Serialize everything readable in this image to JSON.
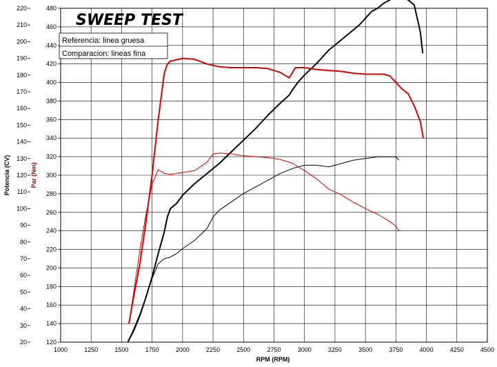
{
  "chart_data": {
    "type": "line",
    "title": "SWEEP TEST",
    "legend": [
      "Referencia: linea gruesa",
      "Comparacion: lineas fina"
    ],
    "legend_position": "top-left",
    "xlabel": "RPM (RPM)",
    "ylabel_left": "Potencia (CV)",
    "ylabel_right": "Par (Nm)",
    "xlim": [
      1000,
      4500
    ],
    "ylim_left": [
      20,
      220
    ],
    "ylim_right": [
      120,
      480
    ],
    "x_ticks": [
      "1000",
      "1250",
      "1500",
      "1750",
      "2000",
      "2250",
      "2500",
      "2750",
      "3000",
      "3250",
      "3500",
      "3750",
      "4000",
      "4250",
      "4500"
    ],
    "y_left_ticks": [
      "20",
      "30",
      "40",
      "50",
      "60",
      "70",
      "80",
      "90",
      "100",
      "110",
      "120",
      "130",
      "140",
      "150",
      "160",
      "170",
      "180",
      "190",
      "200",
      "210",
      "220"
    ],
    "y_right_ticks": [
      "120",
      "140",
      "160",
      "180",
      "200",
      "220",
      "240",
      "260",
      "280",
      "300",
      "320",
      "340",
      "360",
      "380",
      "400",
      "420",
      "440",
      "460",
      "480"
    ],
    "grid": true,
    "series": [
      {
        "name": "Potencia (CV) - Referencia",
        "axis": "left",
        "style": "thick",
        "color": "#000000",
        "x": [
          1550,
          1600,
          1650,
          1700,
          1750,
          1800,
          1850,
          1875,
          1900,
          1950,
          2000,
          2100,
          2200,
          2300,
          2400,
          2500,
          2600,
          2700,
          2800,
          2875,
          2900,
          2950,
          3000,
          3100,
          3200,
          3300,
          3400,
          3450,
          3500,
          3550,
          3600,
          3650,
          3700,
          3750,
          3800,
          3850,
          3900,
          3950,
          3970
        ],
        "y": [
          20,
          27,
          36,
          47,
          59,
          73,
          86,
          95,
          100,
          103,
          108,
          115,
          121,
          127,
          134,
          141,
          148,
          156,
          163,
          168,
          171,
          176,
          180,
          187,
          195,
          201,
          207,
          210,
          214,
          218,
          220,
          223,
          225,
          227,
          227,
          225,
          222,
          206,
          193
        ]
      },
      {
        "name": "Par (Nm) - Referencia",
        "axis": "right",
        "style": "thick",
        "color": "#dd0000",
        "x": [
          1560,
          1600,
          1650,
          1700,
          1750,
          1800,
          1850,
          1875,
          1900,
          2000,
          2100,
          2200,
          2300,
          2400,
          2500,
          2600,
          2700,
          2800,
          2875,
          2925,
          3000,
          3100,
          3200,
          3300,
          3400,
          3500,
          3600,
          3650,
          3700,
          3750,
          3800,
          3850,
          3900,
          3950,
          3975
        ],
        "y": [
          140,
          170,
          205,
          250,
          300,
          360,
          410,
          420,
          423,
          426,
          425,
          420,
          417,
          416,
          416,
          416,
          415,
          411,
          405,
          416,
          416,
          414,
          413,
          412,
          410,
          409,
          409,
          409,
          407,
          400,
          393,
          388,
          375,
          358,
          340
        ]
      },
      {
        "name": "Potencia (CV) - Comparacion",
        "axis": "left",
        "style": "thin",
        "color": "#000000",
        "x": [
          1550,
          1600,
          1650,
          1700,
          1750,
          1800,
          1850,
          1900,
          1950,
          2000,
          2100,
          2200,
          2250,
          2300,
          2400,
          2500,
          2600,
          2700,
          2800,
          2900,
          3000,
          3050,
          3100,
          3200,
          3300,
          3400,
          3500,
          3600,
          3700,
          3750,
          3775
        ],
        "y": [
          20,
          28,
          37,
          47,
          58,
          67,
          70,
          71,
          73,
          76,
          81,
          88,
          95,
          99,
          104,
          109,
          113,
          117,
          121,
          124,
          126,
          126,
          126,
          125,
          127,
          129,
          130,
          131,
          131,
          131,
          129
        ]
      },
      {
        "name": "Par (Nm) - Comparacion",
        "axis": "right",
        "style": "thin",
        "color": "#dd0000",
        "x": [
          1560,
          1600,
          1650,
          1700,
          1750,
          1800,
          1850,
          1900,
          1950,
          2000,
          2100,
          2200,
          2250,
          2300,
          2400,
          2500,
          2600,
          2700,
          2800,
          2900,
          3000,
          3100,
          3200,
          3300,
          3400,
          3500,
          3600,
          3700,
          3750,
          3775
        ],
        "y": [
          140,
          175,
          220,
          258,
          290,
          306,
          302,
          301,
          302,
          303,
          305,
          314,
          323,
          324,
          323,
          321,
          320,
          319,
          317,
          313,
          305,
          296,
          285,
          279,
          271,
          264,
          258,
          250,
          245,
          240
        ]
      }
    ]
  }
}
